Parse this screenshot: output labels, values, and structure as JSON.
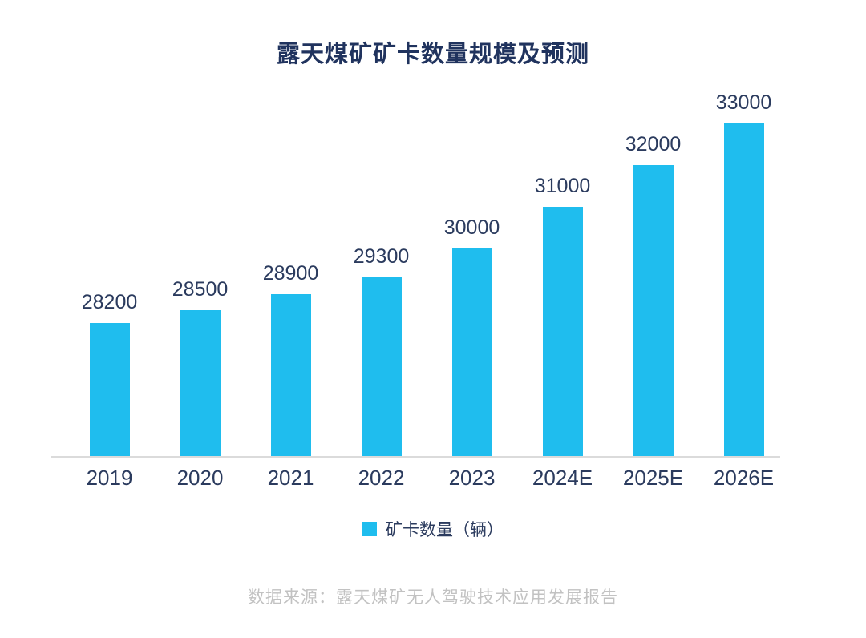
{
  "chart_data": {
    "type": "bar",
    "title": "露天煤矿矿卡数量规模及预测",
    "categories": [
      "2019",
      "2020",
      "2021",
      "2022",
      "2023",
      "2024E",
      "2025E",
      "2026E"
    ],
    "values": [
      28200,
      28500,
      28900,
      29300,
      30000,
      31000,
      32000,
      33000
    ],
    "series_name": "矿卡数量（辆）",
    "xlabel": "",
    "ylabel": "",
    "ylim": [
      25000,
      33000
    ],
    "grid": false,
    "legend_position": "bottom-center",
    "value_labels_shown": true,
    "source_note": "数据来源：露天煤矿无人驾驶技术应用发展报告",
    "colors": {
      "bar": "#1FBDEE",
      "title": "#20335E",
      "label": "#2B3B5E",
      "axis_line": "#DBDBDB",
      "source": "#C2C2C2",
      "background": "#FFFFFF"
    }
  }
}
